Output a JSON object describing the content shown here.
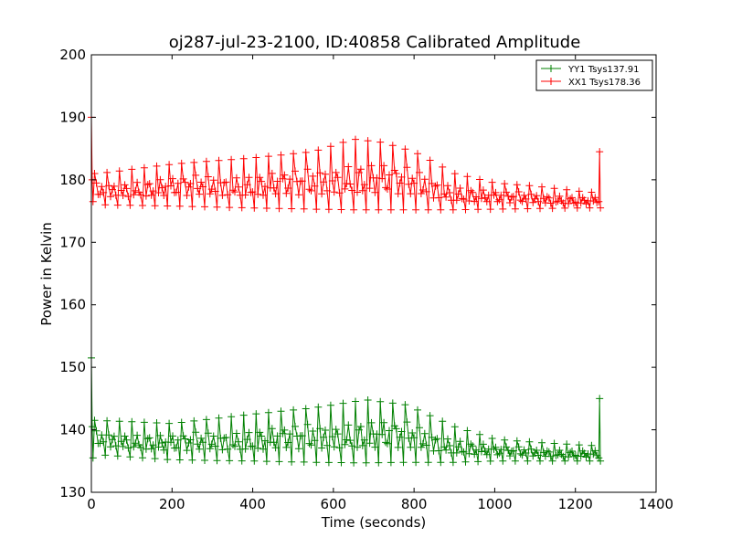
{
  "chart_data": {
    "type": "line",
    "title": "oj287-jul-23-2100, ID:40858 Calibrated Amplitude",
    "xlabel": "Time (seconds)",
    "ylabel": "Power in Kelvin",
    "xlim": [
      0,
      1400
    ],
    "ylim": [
      130,
      200
    ],
    "x_ticks": [
      0,
      200,
      400,
      600,
      800,
      1000,
      1200,
      1400
    ],
    "y_ticks": [
      130,
      140,
      150,
      160,
      170,
      180,
      190,
      200
    ],
    "legend_position": "top-right",
    "grid": false,
    "marker": "+",
    "series": [
      {
        "name": "YY1 Tsys137.91",
        "color": "#008000",
        "x_start": 0,
        "x_end": 1262,
        "spike_start": 151.5,
        "spike_end": 145,
        "settle_min": 135.5,
        "upper_envelope": {
          "x": [
            20,
            200,
            400,
            550,
            680,
            780,
            900,
            1000,
            1100,
            1230
          ],
          "y": [
            141.5,
            141,
            142.5,
            143.5,
            144.8,
            144,
            140.5,
            138.5,
            138,
            137.5
          ]
        },
        "lower_envelope": {
          "x": [
            20,
            200,
            400,
            550,
            680,
            780,
            900,
            1000,
            1100,
            1230
          ],
          "y": [
            136,
            135.2,
            135,
            134.8,
            134.7,
            134.8,
            134.8,
            135,
            135,
            135
          ]
        }
      },
      {
        "name": "XX1 Tsys178.36",
        "color": "#ff0000",
        "x_start": 0,
        "x_end": 1262,
        "spike_start": 190,
        "spike_end": 184.5,
        "settle_min": 176.5,
        "upper_envelope": {
          "x": [
            20,
            200,
            400,
            550,
            650,
            720,
            800,
            900,
            1000,
            1100,
            1230
          ],
          "y": [
            181,
            182.5,
            183.5,
            184.5,
            186.5,
            186,
            184.5,
            181,
            179.5,
            179,
            178
          ]
        },
        "lower_envelope": {
          "x": [
            20,
            200,
            400,
            550,
            650,
            720,
            800,
            900,
            1000,
            1100,
            1230
          ],
          "y": [
            176,
            175.8,
            175.5,
            175.3,
            175.2,
            175.2,
            175.2,
            175.2,
            175.3,
            175.4,
            175.5
          ]
        }
      }
    ]
  }
}
